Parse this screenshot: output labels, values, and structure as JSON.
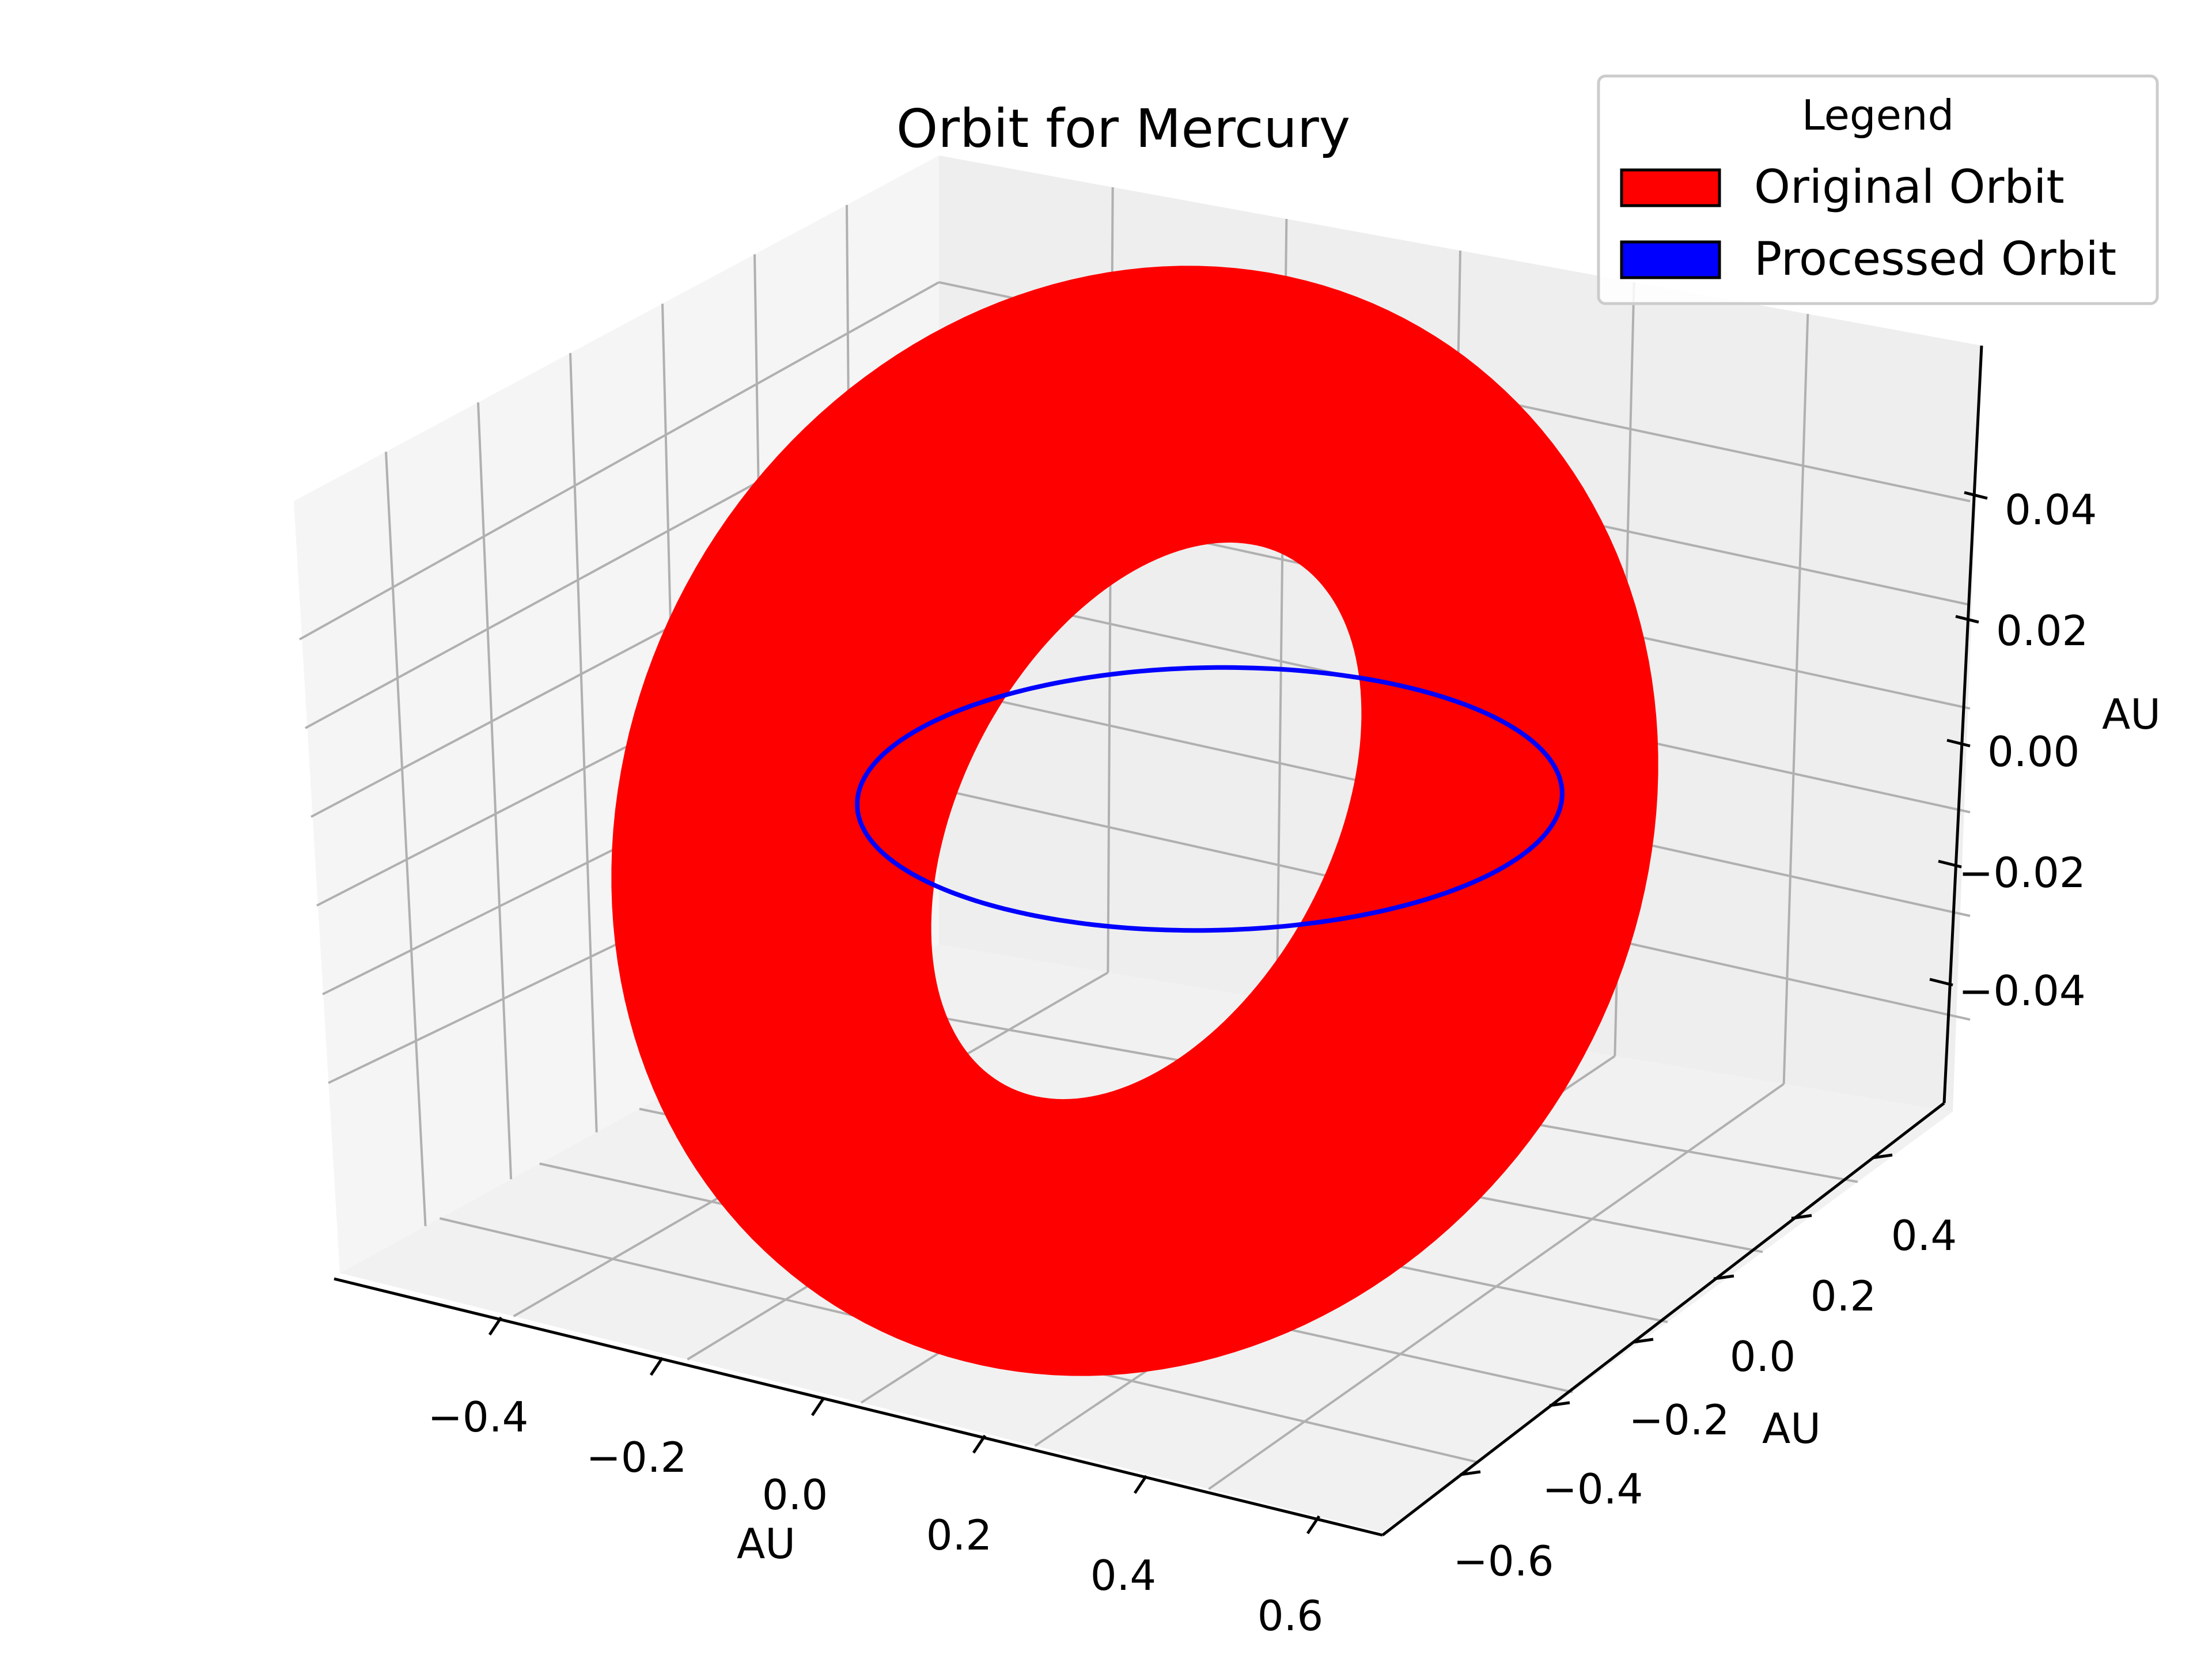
{
  "chart_data": {
    "type": "line",
    "projection": "3d",
    "title": "Orbit for Mercury",
    "xlabel": "AU",
    "ylabel": "AU",
    "zlabel": "AU",
    "x_ticks": [
      "−0.4",
      "−0.2",
      "0.0",
      "0.2",
      "0.4",
      "0.6"
    ],
    "y_ticks": [
      "−0.6",
      "−0.4",
      "−0.2",
      "0.0",
      "0.2",
      "0.4"
    ],
    "z_ticks": [
      "−0.04",
      "−0.02",
      "0.00",
      "0.02",
      "0.04"
    ],
    "xlim": [
      -0.5,
      0.65
    ],
    "ylim": [
      -0.7,
      0.5
    ],
    "zlim": [
      -0.058,
      0.058
    ],
    "grid": true,
    "legend": {
      "title": "Legend",
      "location": "top-right",
      "entries": [
        "Original Orbit",
        "Processed Orbit"
      ]
    },
    "series": [
      {
        "name": "Original Orbit",
        "color": "#ff0000",
        "style": "thick-band",
        "description_values": {
          "orbit_extent_au": [
            -0.31,
            0.47
          ],
          "z_range_au": [
            -0.05,
            0.05
          ]
        }
      },
      {
        "name": "Processed Orbit",
        "color": "#0000ff",
        "style": "line",
        "description_values": {
          "orbit_extent_au": [
            -0.31,
            0.47
          ],
          "z_range_au": [
            0.0,
            0.0
          ]
        }
      }
    ]
  }
}
